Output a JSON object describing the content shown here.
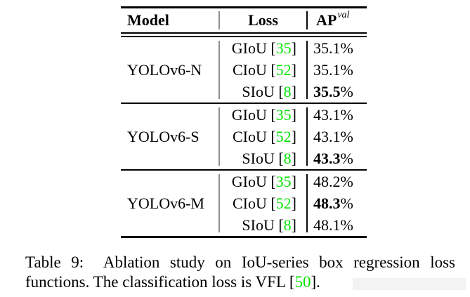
{
  "colors": {
    "cite_green": "#00e400",
    "text": "#000000",
    "vsep_left": "#8f8f8f",
    "vsep_right": "#0a0a0a",
    "background": "#ffffff"
  },
  "table": {
    "header": {
      "model": "Model",
      "loss": "Loss",
      "ap_base": "AP",
      "ap_sup": "val"
    },
    "groups": [
      {
        "model": "YOLOv6-N",
        "rows": [
          {
            "loss_prefix": "GIoU [",
            "cite": "35",
            "loss_suffix": "]",
            "ap": "35.1",
            "ap_suffix": "%",
            "bold": false
          },
          {
            "loss_prefix": "CIoU [",
            "cite": "52",
            "loss_suffix": "]",
            "ap": "35.1",
            "ap_suffix": "%",
            "bold": false
          },
          {
            "loss_prefix": "SIoU [",
            "cite": "8",
            "loss_suffix": "]",
            "ap": "35.5",
            "ap_suffix": "%",
            "bold": true
          }
        ]
      },
      {
        "model": "YOLOv6-S",
        "rows": [
          {
            "loss_prefix": "GIoU [",
            "cite": "35",
            "loss_suffix": "]",
            "ap": "43.1",
            "ap_suffix": "%",
            "bold": false
          },
          {
            "loss_prefix": "CIoU [",
            "cite": "52",
            "loss_suffix": "]",
            "ap": "43.1",
            "ap_suffix": "%",
            "bold": false
          },
          {
            "loss_prefix": "SIoU [",
            "cite": "8",
            "loss_suffix": "]",
            "ap": "43.3",
            "ap_suffix": "%",
            "bold": true
          }
        ]
      },
      {
        "model": "YOLOv6-M",
        "rows": [
          {
            "loss_prefix": "GIoU [",
            "cite": "35",
            "loss_suffix": "]",
            "ap": "48.2",
            "ap_suffix": "%",
            "bold": false
          },
          {
            "loss_prefix": "CIoU [",
            "cite": "52",
            "loss_suffix": "]",
            "ap": "48.3",
            "ap_suffix": "%",
            "bold": true
          },
          {
            "loss_prefix": "SIoU [",
            "cite": "8",
            "loss_suffix": "]",
            "ap": "48.1",
            "ap_suffix": "%",
            "bold": false
          }
        ]
      }
    ]
  },
  "caption": {
    "line1": "Table 9:  Ablation study on IoU-series box regression loss",
    "line2_prefix": "functions. The classification loss is VFL [",
    "line2_cite": "50",
    "line2_suffix": "]."
  }
}
